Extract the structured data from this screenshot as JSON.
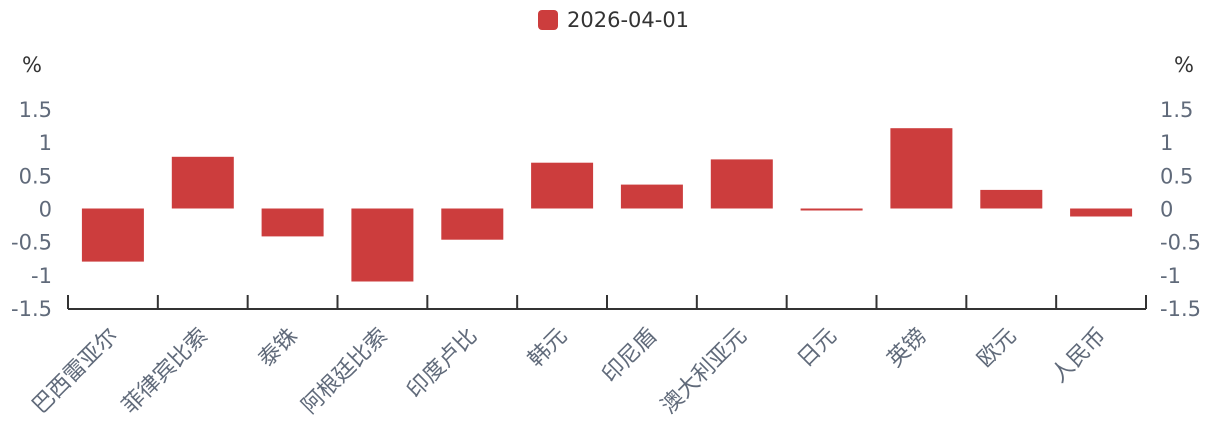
{
  "chart_data": {
    "type": "bar",
    "categories": [
      "巴西雷亚尔",
      "菲律宾比索",
      "泰铢",
      "阿根廷比索",
      "印度卢比",
      "韩元",
      "印尼盾",
      "澳大利亚元",
      "日元",
      "英镑",
      "欧元",
      "人民币"
    ],
    "series": [
      {
        "name": "2026-04-01",
        "color": "#cc3d3d",
        "values": [
          -0.8,
          0.78,
          -0.42,
          -1.1,
          -0.47,
          0.69,
          0.36,
          0.74,
          -0.03,
          1.21,
          0.28,
          -0.12
        ]
      }
    ],
    "y_ticks": [
      "1.5",
      "1",
      "0.5",
      "0",
      "-0.5",
      "-1",
      "-1.5"
    ],
    "ylim": [
      -1.5,
      1.5
    ],
    "y_unit_left": "%",
    "y_unit_right": "%",
    "legend_position": "top-center",
    "grid": false
  }
}
